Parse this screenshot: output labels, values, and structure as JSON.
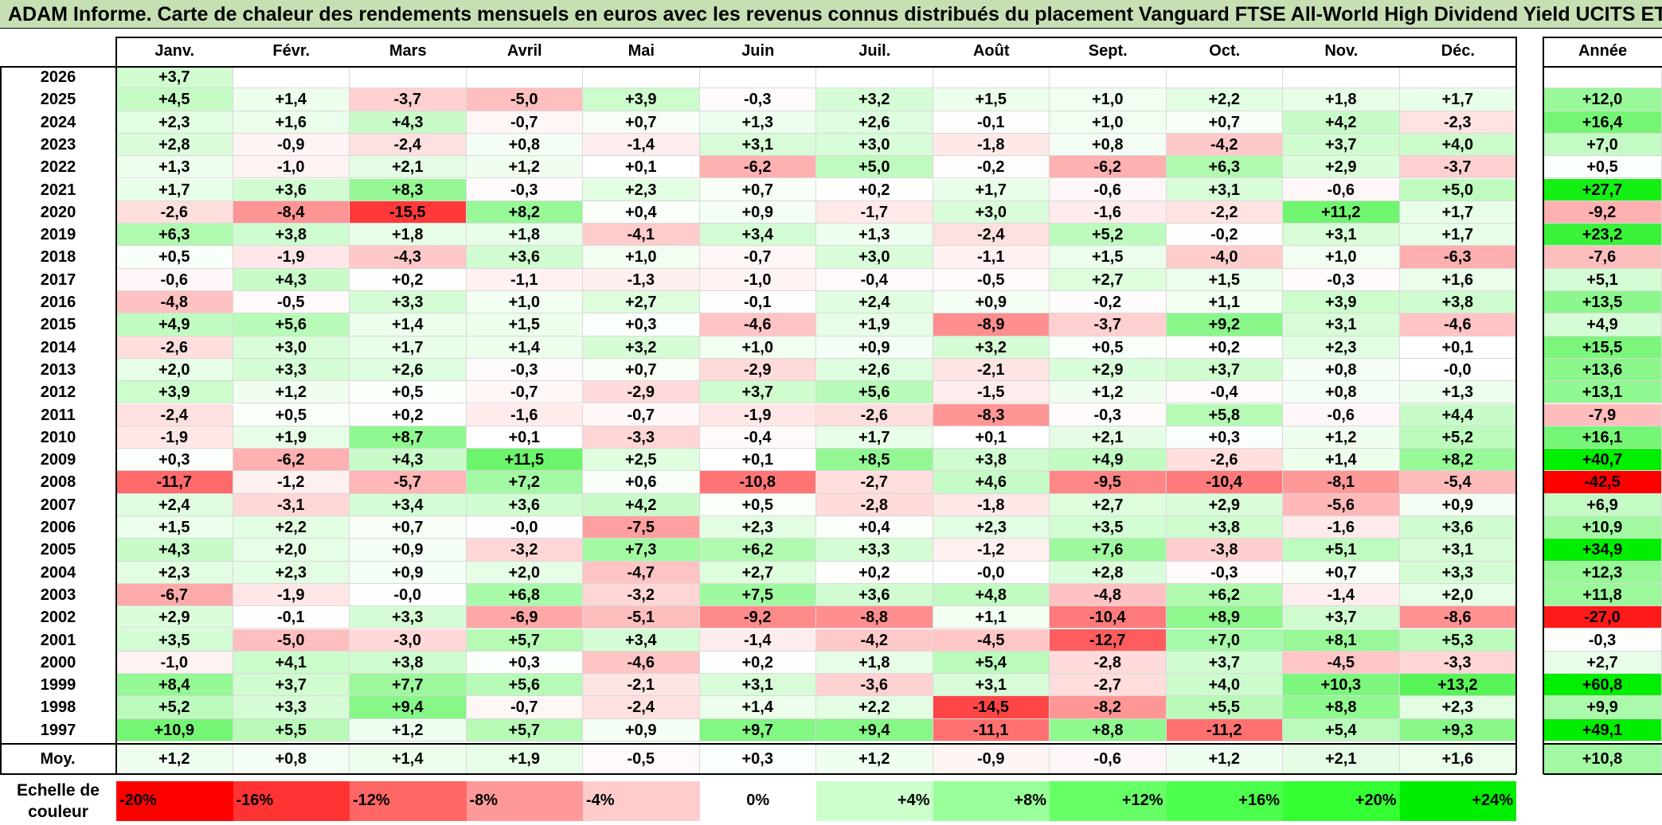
{
  "title": "ADAM Informe. Carte de chaleur des rendements mensuels en euros avec les revenus connus distribués du placement Vanguard FTSE All-World High Dividend Yield UCITS ETF",
  "chart_data": {
    "type": "heatmap",
    "columns": [
      "Janv.",
      "Févr.",
      "Mars",
      "Avril",
      "Mai",
      "Juin",
      "Juil.",
      "Août",
      "Sept.",
      "Oct.",
      "Nov.",
      "Déc."
    ],
    "year_column": "Année",
    "average_label": "Moy.",
    "rows": [
      {
        "year": "2026",
        "values": [
          "+3,7",
          null,
          null,
          null,
          null,
          null,
          null,
          null,
          null,
          null,
          null,
          null
        ],
        "annual": null
      },
      {
        "year": "2025",
        "values": [
          "+4,5",
          "+1,4",
          "-3,7",
          "-5,0",
          "+3,9",
          "-0,3",
          "+3,2",
          "+1,5",
          "+1,0",
          "+2,2",
          "+1,8",
          "+1,7"
        ],
        "annual": "+12,0"
      },
      {
        "year": "2024",
        "values": [
          "+2,3",
          "+1,6",
          "+4,3",
          "-0,7",
          "+0,7",
          "+1,3",
          "+2,6",
          "-0,1",
          "+1,0",
          "+0,7",
          "+4,2",
          "-2,3"
        ],
        "annual": "+16,4"
      },
      {
        "year": "2023",
        "values": [
          "+2,8",
          "-0,9",
          "-2,4",
          "+0,8",
          "-1,4",
          "+3,1",
          "+3,0",
          "-1,8",
          "+0,8",
          "-4,2",
          "+3,7",
          "+4,0"
        ],
        "annual": "+7,0"
      },
      {
        "year": "2022",
        "values": [
          "+1,3",
          "-1,0",
          "+2,1",
          "+1,2",
          "+0,1",
          "-6,2",
          "+5,0",
          "-0,2",
          "-6,2",
          "+6,3",
          "+2,9",
          "-3,7"
        ],
        "annual": "+0,5"
      },
      {
        "year": "2021",
        "values": [
          "+1,7",
          "+3,6",
          "+8,3",
          "-0,3",
          "+2,3",
          "+0,7",
          "+0,2",
          "+1,7",
          "-0,6",
          "+3,1",
          "-0,6",
          "+5,0"
        ],
        "annual": "+27,7"
      },
      {
        "year": "2020",
        "values": [
          "-2,6",
          "-8,4",
          "-15,5",
          "+8,2",
          "+0,4",
          "+0,9",
          "-1,7",
          "+3,0",
          "-1,6",
          "-2,2",
          "+11,2",
          "+1,7"
        ],
        "annual": "-9,2"
      },
      {
        "year": "2019",
        "values": [
          "+6,3",
          "+3,8",
          "+1,8",
          "+1,8",
          "-4,1",
          "+3,4",
          "+1,3",
          "-2,4",
          "+5,2",
          "-0,2",
          "+3,1",
          "+1,7"
        ],
        "annual": "+23,2"
      },
      {
        "year": "2018",
        "values": [
          "+0,5",
          "-1,9",
          "-4,3",
          "+3,6",
          "+1,0",
          "-0,7",
          "+3,0",
          "-1,1",
          "+1,5",
          "-4,0",
          "+1,0",
          "-6,3"
        ],
        "annual": "-7,6"
      },
      {
        "year": "2017",
        "values": [
          "-0,6",
          "+4,3",
          "+0,2",
          "-1,1",
          "-1,3",
          "-1,0",
          "-0,4",
          "-0,5",
          "+2,7",
          "+1,5",
          "-0,3",
          "+1,6"
        ],
        "annual": "+5,1"
      },
      {
        "year": "2016",
        "values": [
          "-4,8",
          "-0,5",
          "+3,3",
          "+1,0",
          "+2,7",
          "-0,1",
          "+2,4",
          "+0,9",
          "-0,2",
          "+1,1",
          "+3,9",
          "+3,8"
        ],
        "annual": "+13,5"
      },
      {
        "year": "2015",
        "values": [
          "+4,9",
          "+5,6",
          "+1,4",
          "+1,5",
          "+0,3",
          "-4,6",
          "+1,9",
          "-8,9",
          "-3,7",
          "+9,2",
          "+3,1",
          "-4,6"
        ],
        "annual": "+4,9"
      },
      {
        "year": "2014",
        "values": [
          "-2,6",
          "+3,0",
          "+1,7",
          "+1,4",
          "+3,2",
          "+1,0",
          "+0,9",
          "+3,2",
          "+0,5",
          "+0,2",
          "+2,3",
          "+0,1"
        ],
        "annual": "+15,5"
      },
      {
        "year": "2013",
        "values": [
          "+2,0",
          "+3,3",
          "+2,6",
          "-0,3",
          "+0,7",
          "-2,9",
          "+2,6",
          "-2,1",
          "+2,9",
          "+3,7",
          "+0,8",
          "-0,0"
        ],
        "annual": "+13,6"
      },
      {
        "year": "2012",
        "values": [
          "+3,9",
          "+1,2",
          "+0,5",
          "-0,7",
          "-2,9",
          "+3,7",
          "+5,6",
          "-1,5",
          "+1,2",
          "-0,4",
          "+0,8",
          "+1,3"
        ],
        "annual": "+13,1"
      },
      {
        "year": "2011",
        "values": [
          "-2,4",
          "+0,5",
          "+0,2",
          "-1,6",
          "-0,7",
          "-1,9",
          "-2,6",
          "-8,3",
          "-0,3",
          "+5,8",
          "-0,6",
          "+4,4"
        ],
        "annual": "-7,9"
      },
      {
        "year": "2010",
        "values": [
          "-1,9",
          "+1,9",
          "+8,7",
          "+0,1",
          "-3,3",
          "-0,4",
          "+1,7",
          "+0,1",
          "+2,1",
          "+0,3",
          "+1,2",
          "+5,2"
        ],
        "annual": "+16,1"
      },
      {
        "year": "2009",
        "values": [
          "+0,3",
          "-6,2",
          "+4,3",
          "+11,5",
          "+2,5",
          "+0,1",
          "+8,5",
          "+3,8",
          "+4,9",
          "-2,6",
          "+1,4",
          "+8,2"
        ],
        "annual": "+40,7"
      },
      {
        "year": "2008",
        "values": [
          "-11,7",
          "-1,2",
          "-5,7",
          "+7,2",
          "+0,6",
          "-10,8",
          "-2,7",
          "+4,6",
          "-9,5",
          "-10,4",
          "-8,1",
          "-5,4"
        ],
        "annual": "-42,5"
      },
      {
        "year": "2007",
        "values": [
          "+2,4",
          "-3,1",
          "+3,4",
          "+3,6",
          "+4,2",
          "+0,5",
          "-2,8",
          "-1,8",
          "+2,7",
          "+2,9",
          "-5,6",
          "+0,9"
        ],
        "annual": "+6,9"
      },
      {
        "year": "2006",
        "values": [
          "+1,5",
          "+2,2",
          "+0,7",
          "-0,0",
          "-7,5",
          "+2,3",
          "+0,4",
          "+2,3",
          "+3,5",
          "+3,8",
          "-1,6",
          "+3,6"
        ],
        "annual": "+10,9"
      },
      {
        "year": "2005",
        "values": [
          "+4,3",
          "+2,0",
          "+0,9",
          "-3,2",
          "+7,3",
          "+6,2",
          "+3,3",
          "-1,2",
          "+7,6",
          "-3,8",
          "+5,1",
          "+3,1"
        ],
        "annual": "+34,9"
      },
      {
        "year": "2004",
        "values": [
          "+2,3",
          "+2,3",
          "+0,9",
          "+2,0",
          "-4,7",
          "+2,7",
          "+0,2",
          "-0,0",
          "+2,8",
          "-0,3",
          "+0,7",
          "+3,3"
        ],
        "annual": "+12,3"
      },
      {
        "year": "2003",
        "values": [
          "-6,7",
          "-1,9",
          "-0,0",
          "+6,8",
          "-3,2",
          "+7,5",
          "+3,6",
          "+4,8",
          "-4,8",
          "+6,2",
          "-1,4",
          "+2,0"
        ],
        "annual": "+11,8"
      },
      {
        "year": "2002",
        "values": [
          "+2,9",
          "-0,1",
          "+3,3",
          "-6,9",
          "-5,1",
          "-9,2",
          "-8,8",
          "+1,1",
          "-10,4",
          "+8,9",
          "+3,7",
          "-8,6"
        ],
        "annual": "-27,0"
      },
      {
        "year": "2001",
        "values": [
          "+3,5",
          "-5,0",
          "-3,0",
          "+5,7",
          "+3,4",
          "-1,4",
          "-4,2",
          "-4,5",
          "-12,7",
          "+7,0",
          "+8,1",
          "+5,3"
        ],
        "annual": "-0,3"
      },
      {
        "year": "2000",
        "values": [
          "-1,0",
          "+4,1",
          "+3,8",
          "+0,3",
          "-4,6",
          "+0,2",
          "+1,8",
          "+5,4",
          "-2,8",
          "+3,7",
          "-4,5",
          "-3,3"
        ],
        "annual": "+2,7"
      },
      {
        "year": "1999",
        "values": [
          "+8,4",
          "+3,7",
          "+7,7",
          "+5,6",
          "-2,1",
          "+3,1",
          "-3,6",
          "+3,1",
          "-2,7",
          "+4,0",
          "+10,3",
          "+13,2"
        ],
        "annual": "+60,8"
      },
      {
        "year": "1998",
        "values": [
          "+5,2",
          "+3,3",
          "+9,4",
          "-0,7",
          "-2,4",
          "+1,4",
          "+2,2",
          "-14,5",
          "-8,2",
          "+5,5",
          "+8,8",
          "+2,3"
        ],
        "annual": "+9,9"
      },
      {
        "year": "1997",
        "values": [
          "+10,9",
          "+5,5",
          "+1,2",
          "+5,7",
          "+0,9",
          "+9,7",
          "+9,4",
          "-11,1",
          "+8,8",
          "-11,2",
          "+5,4",
          "+9,3"
        ],
        "annual": "+49,1"
      }
    ],
    "average": {
      "values": [
        "+1,2",
        "+0,8",
        "+1,4",
        "+1,9",
        "-0,5",
        "+0,3",
        "+1,2",
        "-0,9",
        "-0,6",
        "+1,2",
        "+2,1",
        "+1,6"
      ],
      "annual": "+10,8"
    },
    "legend": {
      "label": "Echelle de couleur",
      "stops": [
        {
          "label": "-20%",
          "value": -20,
          "color": "#ff0000"
        },
        {
          "label": "-16%",
          "value": -16,
          "color": "#ff3333"
        },
        {
          "label": "-12%",
          "value": -12,
          "color": "#ff6666"
        },
        {
          "label": "-8%",
          "value": -8,
          "color": "#ff9999"
        },
        {
          "label": "-4%",
          "value": -4,
          "color": "#ffcccc"
        },
        {
          "label": "0%",
          "value": 0,
          "color": "#ffffff"
        },
        {
          "label": "+4%",
          "value": 4,
          "color": "#ccffcc"
        },
        {
          "label": "+8%",
          "value": 8,
          "color": "#99ff99"
        },
        {
          "label": "+12%",
          "value": 12,
          "color": "#66ff66"
        },
        {
          "label": "+16%",
          "value": 16,
          "color": "#4dff4d"
        },
        {
          "label": "+20%",
          "value": 20,
          "color": "#33ff33"
        },
        {
          "label": "+24%",
          "value": 24,
          "color": "#00ee00"
        }
      ]
    },
    "colors": {
      "negative_max": "#ff0000",
      "neutral": "#ffffff",
      "positive_max": "#00ee00",
      "title_bg": "#c6e0b4"
    }
  }
}
